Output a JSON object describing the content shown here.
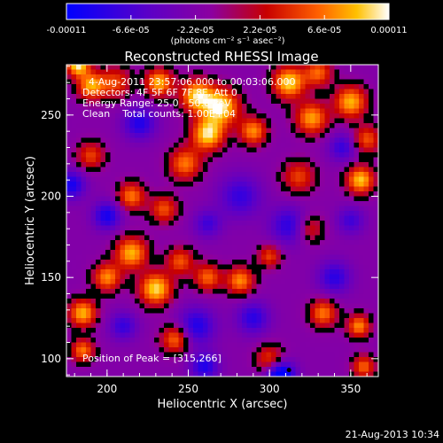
{
  "chart_data": {
    "type": "heatmap",
    "title": "Reconstructed RHESSI Image",
    "xlabel": "Heliocentric X (arcsec)",
    "ylabel": "Heliocentric Y (arcsec)",
    "xlim": [
      175,
      367
    ],
    "ylim": [
      89,
      281
    ],
    "x_ticks": [
      200,
      250,
      300,
      350
    ],
    "y_ticks": [
      100,
      150,
      200,
      250
    ],
    "colorbar": {
      "range": [
        -0.00011,
        0.00011
      ],
      "tick_labels": [
        "-0.00011",
        "-6.6e-05",
        "-2.2e-05",
        "2.2e-05",
        "6.6e-05",
        "0.00011"
      ],
      "tick_values": [
        -0.00011,
        -6.6e-05,
        -2.2e-05,
        2.2e-05,
        6.6e-05,
        0.00011
      ],
      "unit_label": "(photons cm⁻² s⁻¹ asec⁻²)",
      "colormap": [
        "#0000ff",
        "#5a00c8",
        "#8c00a0",
        "#c80000",
        "#ff6000",
        "#ffc000",
        "#ffffff"
      ]
    },
    "annotations": [
      "4-Aug-2011 23:57:06.000 to 00:03:06.000",
      "Detectors: 4F 5F 6F 7F 8F, Att 0",
      "Energy Range: 25.0 - 50.0 keV",
      "Clean    Total counts: 1.00E+04"
    ],
    "peak_label": "Position of Peak = [315,266]",
    "peak": [
      315,
      266
    ],
    "blobs": [
      {
        "x": 182,
        "y": 281,
        "a": 1.0,
        "s": 5
      },
      {
        "x": 190,
        "y": 268,
        "a": 0.8,
        "s": 6
      },
      {
        "x": 205,
        "y": 270,
        "a": 0.55,
        "s": 7
      },
      {
        "x": 232,
        "y": 270,
        "a": 0.85,
        "s": 6
      },
      {
        "x": 255,
        "y": 262,
        "a": 0.9,
        "s": 7
      },
      {
        "x": 270,
        "y": 255,
        "a": 1.0,
        "s": 8
      },
      {
        "x": 262,
        "y": 238,
        "a": 0.95,
        "s": 7
      },
      {
        "x": 248,
        "y": 220,
        "a": 0.7,
        "s": 7
      },
      {
        "x": 290,
        "y": 240,
        "a": 0.75,
        "s": 6
      },
      {
        "x": 312,
        "y": 270,
        "a": 0.95,
        "s": 7
      },
      {
        "x": 330,
        "y": 276,
        "a": 0.65,
        "s": 6
      },
      {
        "x": 326,
        "y": 248,
        "a": 0.8,
        "s": 7
      },
      {
        "x": 350,
        "y": 258,
        "a": 0.85,
        "s": 7
      },
      {
        "x": 360,
        "y": 235,
        "a": 0.6,
        "s": 6
      },
      {
        "x": 356,
        "y": 210,
        "a": 0.9,
        "s": 6
      },
      {
        "x": 318,
        "y": 212,
        "a": 0.55,
        "s": 7
      },
      {
        "x": 190,
        "y": 225,
        "a": 0.55,
        "s": 6
      },
      {
        "x": 215,
        "y": 200,
        "a": 0.7,
        "s": 6
      },
      {
        "x": 235,
        "y": 192,
        "a": 0.6,
        "s": 6
      },
      {
        "x": 215,
        "y": 165,
        "a": 0.85,
        "s": 7
      },
      {
        "x": 245,
        "y": 160,
        "a": 0.6,
        "s": 6
      },
      {
        "x": 200,
        "y": 150,
        "a": 0.75,
        "s": 6
      },
      {
        "x": 230,
        "y": 143,
        "a": 0.95,
        "s": 7
      },
      {
        "x": 262,
        "y": 150,
        "a": 0.65,
        "s": 6
      },
      {
        "x": 282,
        "y": 148,
        "a": 0.75,
        "s": 6
      },
      {
        "x": 300,
        "y": 163,
        "a": 0.55,
        "s": 5
      },
      {
        "x": 185,
        "y": 128,
        "a": 0.85,
        "s": 6
      },
      {
        "x": 185,
        "y": 105,
        "a": 0.7,
        "s": 5
      },
      {
        "x": 242,
        "y": 112,
        "a": 0.7,
        "s": 6
      },
      {
        "x": 300,
        "y": 100,
        "a": 0.55,
        "s": 6
      },
      {
        "x": 333,
        "y": 128,
        "a": 0.7,
        "s": 6
      },
      {
        "x": 355,
        "y": 120,
        "a": 0.75,
        "s": 5
      },
      {
        "x": 358,
        "y": 95,
        "a": 0.65,
        "s": 5
      },
      {
        "x": 325,
        "y": 180,
        "a": 0.45,
        "s": 6
      },
      {
        "x": 282,
        "y": 200,
        "a": -0.45,
        "s": 9
      },
      {
        "x": 312,
        "y": 182,
        "a": -0.5,
        "s": 8
      },
      {
        "x": 255,
        "y": 120,
        "a": -0.55,
        "s": 8
      },
      {
        "x": 290,
        "y": 125,
        "a": -0.5,
        "s": 7
      },
      {
        "x": 220,
        "y": 245,
        "a": -0.55,
        "s": 7
      },
      {
        "x": 200,
        "y": 188,
        "a": -0.6,
        "s": 6
      },
      {
        "x": 178,
        "y": 207,
        "a": -0.6,
        "s": 6
      },
      {
        "x": 260,
        "y": 95,
        "a": -0.55,
        "s": 6
      },
      {
        "x": 307,
        "y": 90,
        "a": -0.9,
        "s": 6
      },
      {
        "x": 340,
        "y": 150,
        "a": -0.5,
        "s": 7
      },
      {
        "x": 345,
        "y": 230,
        "a": -0.45,
        "s": 6
      },
      {
        "x": 262,
        "y": 183,
        "a": -0.4,
        "s": 6
      },
      {
        "x": 350,
        "y": 185,
        "a": -0.4,
        "s": 6
      },
      {
        "x": 210,
        "y": 120,
        "a": -0.45,
        "s": 6
      }
    ]
  },
  "footer": {
    "timestamp": "21-Aug-2013 10:34"
  }
}
